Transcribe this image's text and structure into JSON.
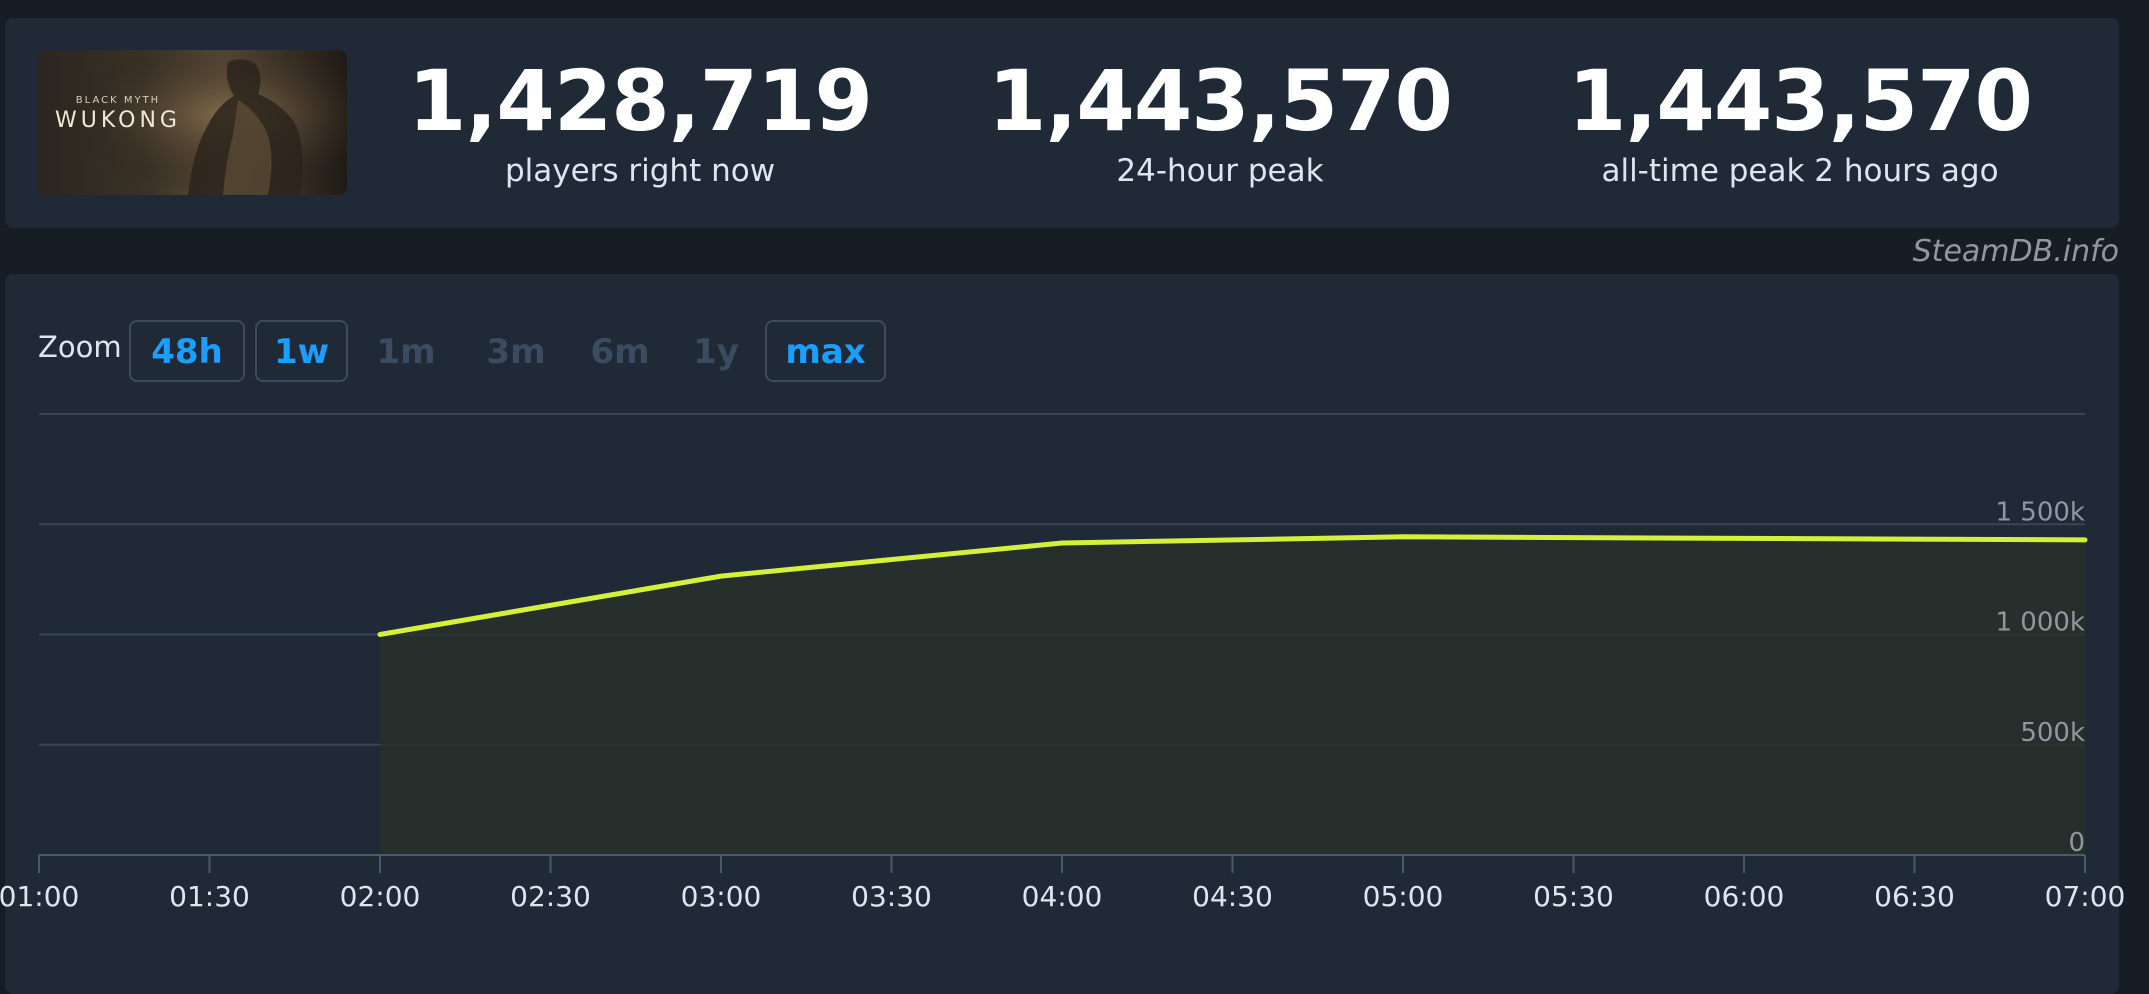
{
  "header": {
    "game_logo_small": "BLACK MYTH",
    "game_logo_big": "WUKONG",
    "stats": [
      {
        "value": "1,428,719",
        "label": "players right now"
      },
      {
        "value": "1,443,570",
        "label": "24-hour peak"
      },
      {
        "value": "1,443,570",
        "label": "all-time peak 2 hours ago"
      }
    ]
  },
  "watermark": "SteamDB.info",
  "zoom": {
    "label": "Zoom",
    "options": [
      {
        "label": "48h",
        "enabled": true
      },
      {
        "label": "1w",
        "enabled": true
      },
      {
        "label": "1m",
        "enabled": false
      },
      {
        "label": "3m",
        "enabled": false
      },
      {
        "label": "6m",
        "enabled": false
      },
      {
        "label": "1y",
        "enabled": false
      },
      {
        "label": "max",
        "enabled": true
      }
    ]
  },
  "colors": {
    "line": "#d4f03a",
    "active_zoom": "#1a9fff",
    "background": "#171d25",
    "panel": "#202936"
  },
  "chart_data": {
    "type": "line",
    "title": "",
    "xlabel": "",
    "ylabel": "",
    "x_ticks": [
      "01:00",
      "01:30",
      "02:00",
      "02:30",
      "03:00",
      "03:30",
      "04:00",
      "04:30",
      "05:00",
      "05:30",
      "06:00",
      "06:30",
      "07:00"
    ],
    "y_ticks": [
      0,
      500,
      1000,
      1500
    ],
    "y_tick_labels": [
      "0",
      "500k",
      "1 000k",
      "1 500k"
    ],
    "xlim": [
      "01:00",
      "07:00"
    ],
    "ylim": [
      0,
      2000
    ],
    "grid": true,
    "series": [
      {
        "x": [
          "02:00",
          "03:00",
          "04:00",
          "05:00",
          "06:00",
          "07:00"
        ],
        "values": [
          1000,
          1265,
          1415,
          1443,
          1436,
          1429
        ]
      }
    ]
  }
}
